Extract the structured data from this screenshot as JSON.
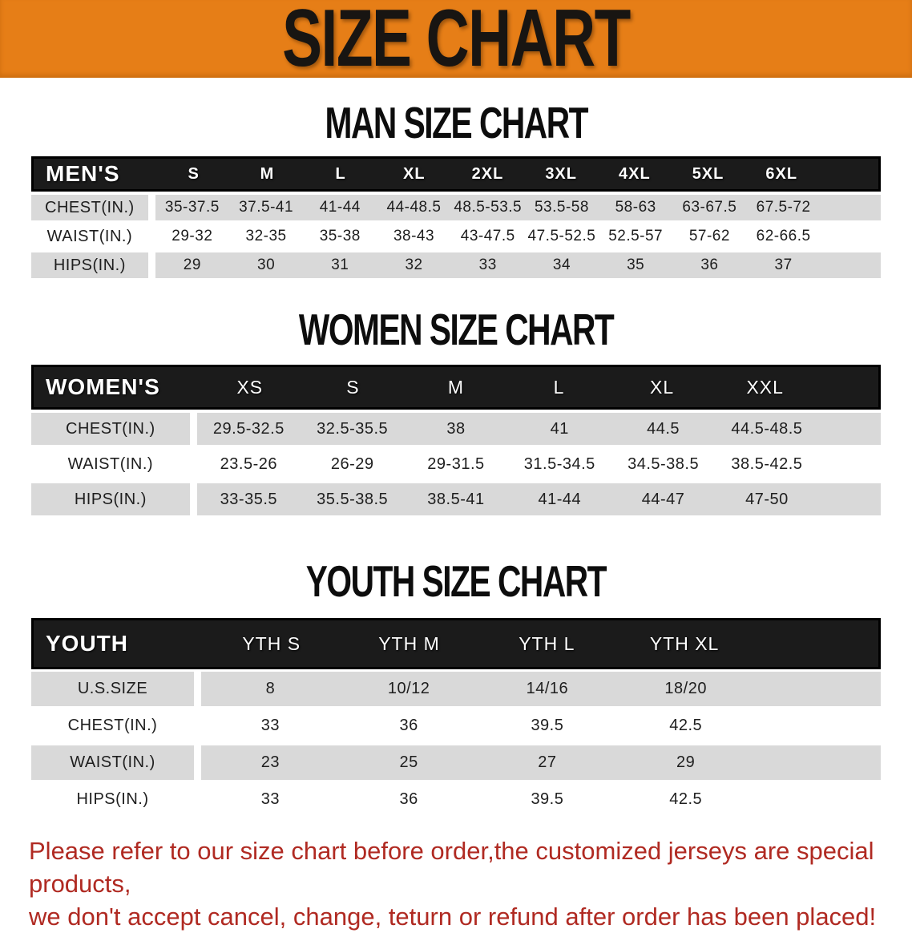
{
  "banner": {
    "title": "SIZE CHART"
  },
  "men": {
    "title": "MAN SIZE CHART",
    "header_label": "MEN'S",
    "sizes": [
      "S",
      "M",
      "L",
      "XL",
      "2XL",
      "3XL",
      "4XL",
      "5XL",
      "6XL"
    ],
    "rows": [
      {
        "label": "CHEST(IN.)",
        "values": [
          "35-37.5",
          "37.5-41",
          "41-44",
          "44-48.5",
          "48.5-53.5",
          "53.5-58",
          "58-63",
          "63-67.5",
          "67.5-72"
        ]
      },
      {
        "label": "WAIST(IN.)",
        "values": [
          "29-32",
          "32-35",
          "35-38",
          "38-43",
          "43-47.5",
          "47.5-52.5",
          "52.5-57",
          "57-62",
          "62-66.5"
        ]
      },
      {
        "label": "HIPS(IN.)",
        "values": [
          "29",
          "30",
          "31",
          "32",
          "33",
          "34",
          "35",
          "36",
          "37"
        ]
      }
    ]
  },
  "women": {
    "title": "WOMEN SIZE CHART",
    "header_label": "WOMEN'S",
    "sizes": [
      "XS",
      "S",
      "M",
      "L",
      "XL",
      "XXL"
    ],
    "rows": [
      {
        "label": "CHEST(IN.)",
        "values": [
          "29.5-32.5",
          "32.5-35.5",
          "38",
          "41",
          "44.5",
          "44.5-48.5"
        ]
      },
      {
        "label": "WAIST(IN.)",
        "values": [
          "23.5-26",
          "26-29",
          "29-31.5",
          "31.5-34.5",
          "34.5-38.5",
          "38.5-42.5"
        ]
      },
      {
        "label": "HIPS(IN.)",
        "values": [
          "33-35.5",
          "35.5-38.5",
          "38.5-41",
          "41-44",
          "44-47",
          "47-50"
        ]
      }
    ]
  },
  "youth": {
    "title": "YOUTH SIZE CHART",
    "header_label": "YOUTH",
    "sizes": [
      "YTH S",
      "YTH M",
      "YTH L",
      "YTH XL"
    ],
    "rows": [
      {
        "label": "U.S.SIZE",
        "values": [
          "8",
          "10/12",
          "14/16",
          "18/20"
        ]
      },
      {
        "label": "CHEST(IN.)",
        "values": [
          "33",
          "36",
          "39.5",
          "42.5"
        ]
      },
      {
        "label": "WAIST(IN.)",
        "values": [
          "23",
          "25",
          "27",
          "29"
        ]
      },
      {
        "label": "HIPS(IN.)",
        "values": [
          "33",
          "36",
          "39.5",
          "42.5"
        ]
      }
    ]
  },
  "disclaimer": {
    "line1": "Please refer to our size chart before order,the customized jerseys are special products,",
    "line2": "we don't accept cancel, change, teturn or refund after order has been placed!"
  },
  "colors": {
    "banner_orange": "#E67E17",
    "header_black": "#1B1B1B",
    "stripe_gray": "#D9D9D9",
    "disclaimer_red": "#B02A22"
  }
}
